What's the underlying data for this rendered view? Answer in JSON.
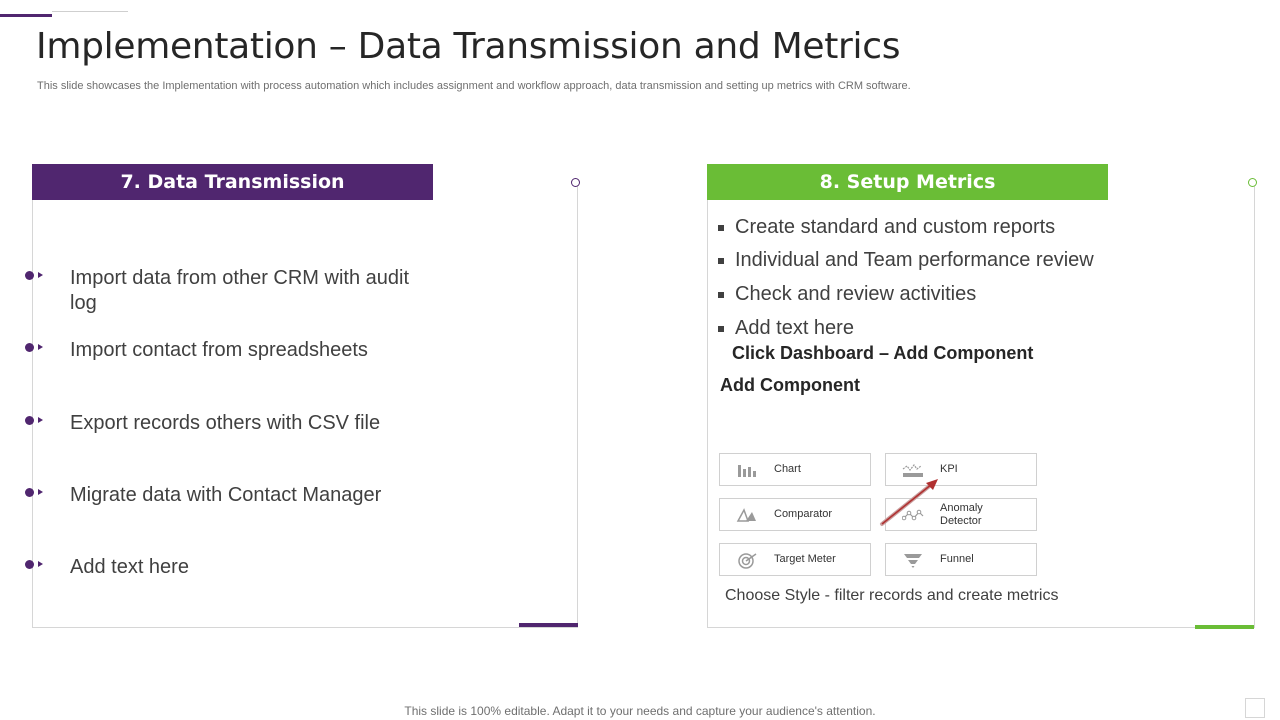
{
  "slide": {
    "title": "Implementation – Data Transmission and Metrics",
    "subtitle": "This slide showcases the Implementation with process automation which includes assignment and workflow approach, data transmission and setting up metrics with CRM software.",
    "footer": "This slide is 100% editable. Adapt it to your needs and capture your audience's attention."
  },
  "left_panel": {
    "header": "7. Data Transmission",
    "items": [
      "Import data from other CRM with audit log",
      "Import contact from spreadsheets",
      "Export records others with CSV file",
      "Migrate data with Contact Manager",
      "Add text here"
    ]
  },
  "right_panel": {
    "header": "8. Setup Metrics",
    "items": [
      "Create standard and custom reports",
      "Individual and Team performance review",
      "Check and review activities",
      "Add text here"
    ],
    "instruction_1": "Click Dashboard – Add Component",
    "instruction_2": "Add Component",
    "components": [
      {
        "label": "Chart",
        "icon": "bar-chart-icon"
      },
      {
        "label": "KPI",
        "icon": "kpi-icon"
      },
      {
        "label": "Comparator",
        "icon": "comparator-icon"
      },
      {
        "label": "Anomaly Detector",
        "icon": "anomaly-icon"
      },
      {
        "label": "Target Meter",
        "icon": "target-meter-icon"
      },
      {
        "label": "Funnel",
        "icon": "funnel-icon"
      }
    ],
    "caption": "Choose Style - filter records and create metrics"
  },
  "colors": {
    "purple": "#50266f",
    "green": "#6abd36",
    "arrow_red": "#b03030"
  }
}
